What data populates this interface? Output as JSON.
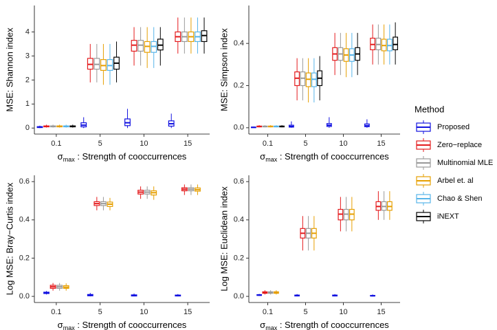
{
  "legend": {
    "title": "Method",
    "items": [
      {
        "name": "Proposed",
        "color": "#1010e0"
      },
      {
        "name": "Zero−replace",
        "color": "#e41a1c"
      },
      {
        "name": "Multinomial MLE",
        "color": "#999999"
      },
      {
        "name": "Arbel et. al",
        "color": "#e69f00"
      },
      {
        "name": "Chao & Shen",
        "color": "#56b4e9"
      },
      {
        "name": "iNEXT",
        "color": "#000000"
      }
    ]
  },
  "chart_data": [
    {
      "type": "box",
      "y_label": "MSE: Shannon index",
      "x_label": {
        "symbol": "σ",
        "subscript": "max",
        "text": " : Strength of cooccurrences"
      },
      "categories": [
        "0.1",
        "5",
        "10",
        "15"
      ],
      "ylim": [
        -0.25,
        5.1
      ],
      "yticks": [
        0,
        1,
        2,
        3,
        4
      ],
      "series": [
        {
          "values": [
            [
              0,
              0.02,
              0.04,
              0.06,
              0.1
            ],
            [
              0,
              0.05,
              0.12,
              0.22,
              0.45
            ],
            [
              0,
              0.1,
              0.22,
              0.38,
              0.8
            ],
            [
              0,
              0.08,
              0.18,
              0.3,
              0.6
            ]
          ]
        },
        {
          "values": [
            [
              0.02,
              0.05,
              0.07,
              0.09,
              0.14
            ],
            [
              1.9,
              2.45,
              2.65,
              2.9,
              3.5
            ],
            [
              2.6,
              3.2,
              3.45,
              3.65,
              4.2
            ],
            [
              3.1,
              3.6,
              3.8,
              4.0,
              4.6
            ]
          ]
        },
        {
          "values": [
            [
              0.02,
              0.05,
              0.07,
              0.09,
              0.14
            ],
            [
              1.9,
              2.45,
              2.65,
              2.9,
              3.5
            ],
            [
              2.6,
              3.2,
              3.45,
              3.65,
              4.2
            ],
            [
              3.1,
              3.6,
              3.8,
              4.0,
              4.6
            ]
          ]
        },
        {
          "values": [
            [
              0.02,
              0.05,
              0.07,
              0.09,
              0.14
            ],
            [
              1.8,
              2.4,
              2.6,
              2.85,
              3.5
            ],
            [
              2.5,
              3.15,
              3.4,
              3.6,
              4.2
            ],
            [
              3.1,
              3.6,
              3.8,
              4.0,
              4.6
            ]
          ]
        },
        {
          "values": [
            [
              0.02,
              0.05,
              0.07,
              0.09,
              0.14
            ],
            [
              1.8,
              2.4,
              2.6,
              2.85,
              3.5
            ],
            [
              2.5,
              3.15,
              3.4,
              3.6,
              4.2
            ],
            [
              3.1,
              3.6,
              3.8,
              4.0,
              4.6
            ]
          ]
        },
        {
          "values": [
            [
              0.02,
              0.05,
              0.07,
              0.09,
              0.14
            ],
            [
              1.9,
              2.45,
              2.7,
              2.95,
              3.6
            ],
            [
              2.6,
              3.25,
              3.45,
              3.7,
              4.2
            ],
            [
              3.1,
              3.6,
              3.85,
              4.05,
              4.6
            ]
          ]
        }
      ]
    },
    {
      "type": "box",
      "y_label": "MSE: Simpson index",
      "x_label": {
        "symbol": "σ",
        "subscript": "max",
        "text": " : Strength of cooccurrences"
      },
      "categories": [
        "0.1",
        "5",
        "10",
        "15"
      ],
      "ylim": [
        -0.03,
        0.58
      ],
      "yticks": [
        {
          "value": 0,
          "label": "0.0"
        },
        0.2,
        0.4
      ],
      "series": [
        {
          "values": [
            [
              0,
              0.001,
              0.002,
              0.003,
              0.005
            ],
            [
              0,
              0.003,
              0.006,
              0.012,
              0.03
            ],
            [
              0,
              0.006,
              0.012,
              0.02,
              0.05
            ],
            [
              0,
              0.005,
              0.01,
              0.018,
              0.04
            ]
          ]
        },
        {
          "values": [
            [
              0.002,
              0.004,
              0.006,
              0.008,
              0.012
            ],
            [
              0.13,
              0.2,
              0.235,
              0.265,
              0.33
            ],
            [
              0.25,
              0.32,
              0.35,
              0.38,
              0.45
            ],
            [
              0.3,
              0.37,
              0.395,
              0.425,
              0.49
            ]
          ]
        },
        {
          "values": [
            [
              0.002,
              0.004,
              0.006,
              0.008,
              0.012
            ],
            [
              0.13,
              0.2,
              0.235,
              0.265,
              0.33
            ],
            [
              0.25,
              0.32,
              0.35,
              0.38,
              0.45
            ],
            [
              0.3,
              0.37,
              0.395,
              0.425,
              0.49
            ]
          ]
        },
        {
          "values": [
            [
              0.002,
              0.004,
              0.006,
              0.008,
              0.012
            ],
            [
              0.12,
              0.195,
              0.23,
              0.26,
              0.33
            ],
            [
              0.24,
              0.315,
              0.345,
              0.375,
              0.45
            ],
            [
              0.3,
              0.365,
              0.39,
              0.42,
              0.49
            ]
          ]
        },
        {
          "values": [
            [
              0.002,
              0.004,
              0.006,
              0.008,
              0.012
            ],
            [
              0.12,
              0.195,
              0.23,
              0.26,
              0.33
            ],
            [
              0.24,
              0.315,
              0.345,
              0.375,
              0.45
            ],
            [
              0.3,
              0.365,
              0.39,
              0.42,
              0.49
            ]
          ]
        },
        {
          "values": [
            [
              0.002,
              0.004,
              0.006,
              0.008,
              0.012
            ],
            [
              0.13,
              0.2,
              0.235,
              0.27,
              0.34
            ],
            [
              0.25,
              0.32,
              0.35,
              0.38,
              0.45
            ],
            [
              0.3,
              0.37,
              0.395,
              0.43,
              0.5
            ]
          ]
        }
      ]
    },
    {
      "type": "box",
      "y_label": "Log MSE: Bray−Curtis index",
      "x_label": {
        "symbol": "σ",
        "subscript": "max",
        "text": " : Strength of cooccurrences"
      },
      "categories": [
        "0.1",
        "5",
        "10",
        "15"
      ],
      "ylim": [
        -0.032,
        0.633
      ],
      "yticks": [
        {
          "value": 0,
          "label": "0.0"
        },
        0.2,
        0.4,
        0.6
      ],
      "series": [
        {
          "values": [
            [
              0.01,
              0.015,
              0.018,
              0.022,
              0.028
            ],
            [
              0,
              0.003,
              0.006,
              0.01,
              0.018
            ],
            [
              0,
              0.002,
              0.004,
              0.008,
              0.015
            ],
            [
              0,
              0.002,
              0.004,
              0.007,
              0.012
            ]
          ]
        },
        {
          "values": [
            [
              0.03,
              0.042,
              0.05,
              0.058,
              0.07
            ],
            [
              0.45,
              0.475,
              0.485,
              0.495,
              0.52
            ],
            [
              0.51,
              0.535,
              0.545,
              0.555,
              0.575
            ],
            [
              0.53,
              0.552,
              0.56,
              0.568,
              0.585
            ]
          ]
        },
        {
          "values": [
            [
              0.03,
              0.042,
              0.05,
              0.058,
              0.07
            ],
            [
              0.45,
              0.475,
              0.485,
              0.495,
              0.52
            ],
            [
              0.51,
              0.535,
              0.545,
              0.555,
              0.575
            ],
            [
              0.53,
              0.552,
              0.56,
              0.568,
              0.585
            ]
          ]
        },
        {
          "values": [
            [
              0.03,
              0.042,
              0.048,
              0.056,
              0.068
            ],
            [
              0.45,
              0.47,
              0.482,
              0.493,
              0.515
            ],
            [
              0.505,
              0.53,
              0.542,
              0.552,
              0.575
            ],
            [
              0.53,
              0.55,
              0.558,
              0.567,
              0.585
            ]
          ]
        }
      ]
    },
    {
      "type": "box",
      "y_label": "Log MSE: Euclidean index",
      "x_label": {
        "symbol": "σ",
        "subscript": "max",
        "text": " : Strength of cooccurrences"
      },
      "categories": [
        "0.1",
        "5",
        "10",
        "15"
      ],
      "ylim": [
        -0.032,
        0.633
      ],
      "yticks": [
        {
          "value": 0,
          "label": "0.0"
        },
        0.2,
        0.4,
        0.6
      ],
      "series": [
        {
          "values": [
            [
              0.002,
              0.005,
              0.007,
              0.009,
              0.013
            ],
            [
              0,
              0.002,
              0.004,
              0.007,
              0.012
            ],
            [
              0,
              0.002,
              0.004,
              0.007,
              0.012
            ],
            [
              0,
              0.002,
              0.003,
              0.005,
              0.01
            ]
          ]
        },
        {
          "values": [
            [
              0.01,
              0.016,
              0.02,
              0.024,
              0.032
            ],
            [
              0.24,
              0.305,
              0.33,
              0.355,
              0.42
            ],
            [
              0.34,
              0.4,
              0.43,
              0.455,
              0.52
            ],
            [
              0.4,
              0.45,
              0.47,
              0.495,
              0.55
            ]
          ]
        },
        {
          "values": [
            [
              0.01,
              0.016,
              0.02,
              0.024,
              0.032
            ],
            [
              0.24,
              0.305,
              0.33,
              0.355,
              0.42
            ],
            [
              0.34,
              0.4,
              0.43,
              0.455,
              0.52
            ],
            [
              0.4,
              0.45,
              0.47,
              0.495,
              0.55
            ]
          ]
        },
        {
          "values": [
            [
              0.01,
              0.016,
              0.02,
              0.024,
              0.032
            ],
            [
              0.24,
              0.305,
              0.33,
              0.355,
              0.42
            ],
            [
              0.34,
              0.4,
              0.43,
              0.455,
              0.52
            ],
            [
              0.4,
              0.45,
              0.47,
              0.495,
              0.55
            ]
          ]
        }
      ]
    }
  ]
}
